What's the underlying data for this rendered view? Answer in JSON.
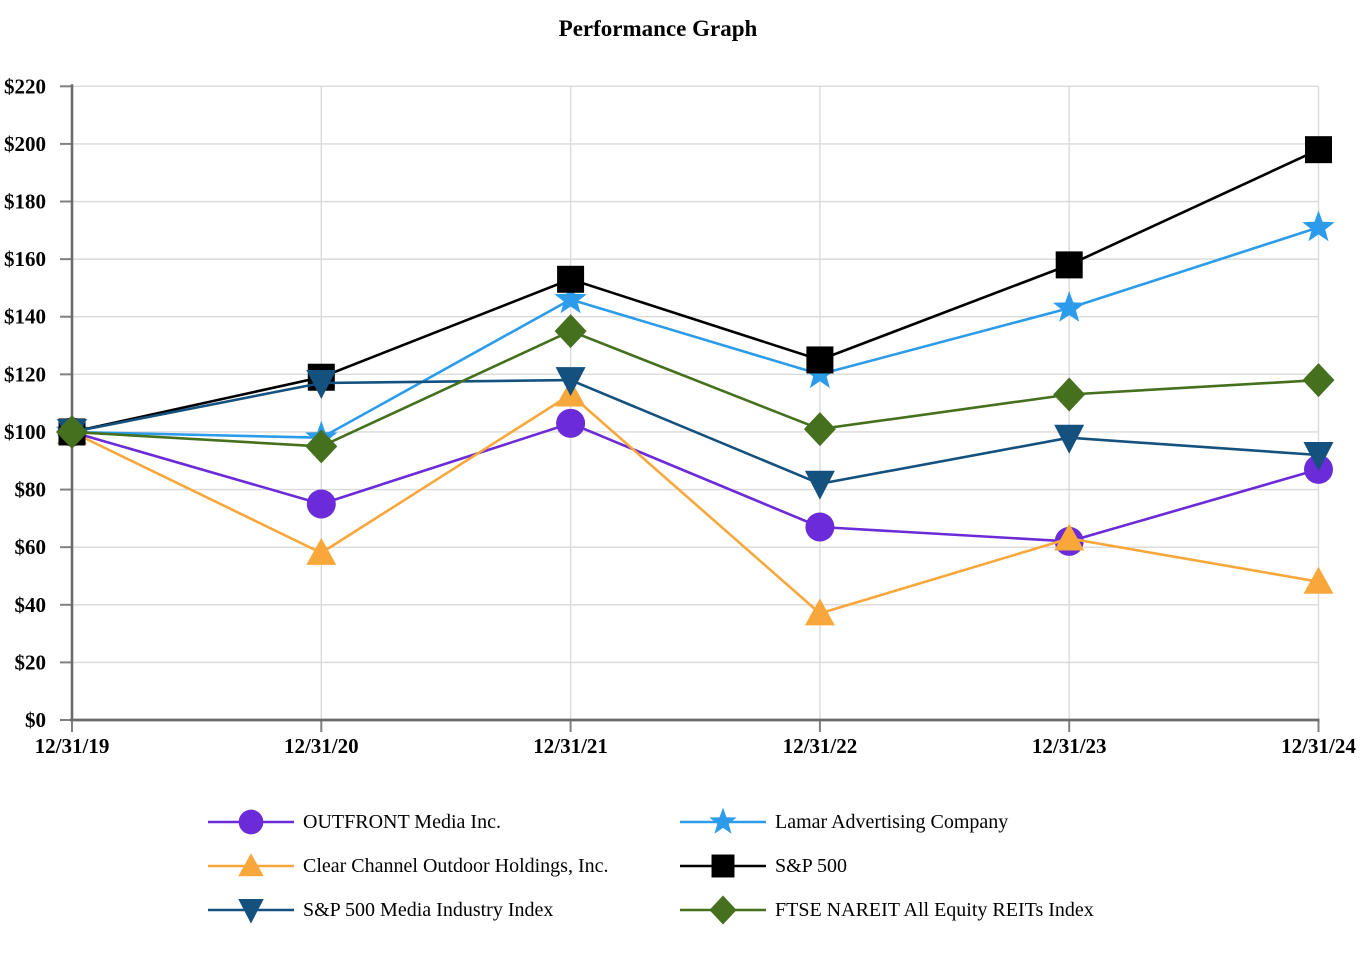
{
  "chart_data": {
    "type": "line",
    "title": "Performance Graph",
    "x_labels": [
      "12/31/19",
      "12/31/20",
      "12/31/21",
      "12/31/22",
      "12/31/23",
      "12/31/24"
    ],
    "y_tick_labels": [
      "$0",
      "$20",
      "$40",
      "$60",
      "$80",
      "$100",
      "$120",
      "$140",
      "$160",
      "$180",
      "$200",
      "$220"
    ],
    "ylim": [
      0,
      220
    ],
    "y_tick_step": 20,
    "grid": true,
    "legend_position": "bottom",
    "grid_color": "#DADADA",
    "axis_color": "#6B6B6B",
    "tick_color": "#808080",
    "series": [
      {
        "name": "OUTFRONT Media Inc.",
        "marker": "circle",
        "color": "#6B2BD8",
        "values": [
          100,
          75,
          103,
          67,
          62,
          87
        ]
      },
      {
        "name": "Lamar Advertising Company",
        "marker": "star",
        "color": "#2C9CEA",
        "values": [
          100,
          98,
          146,
          120,
          143,
          171
        ]
      },
      {
        "name": "Clear Channel Outdoor Holdings, Inc.",
        "marker": "triangle-up",
        "color": "#F8A73B",
        "values": [
          100,
          58,
          113,
          37,
          63,
          48
        ]
      },
      {
        "name": "S&P 500",
        "marker": "square",
        "color": "#000000",
        "values": [
          100,
          119,
          153,
          125,
          158,
          198
        ]
      },
      {
        "name": "S&P 500 Media Industry Index",
        "marker": "triangle-down",
        "color": "#15517E",
        "values": [
          100,
          117,
          118,
          82,
          98,
          92
        ]
      },
      {
        "name": "FTSE NAREIT All Equity REITs Index",
        "marker": "diamond",
        "color": "#45701D",
        "values": [
          100,
          95,
          135,
          101,
          113,
          118
        ]
      }
    ]
  },
  "legend": {
    "left_column": [
      0,
      2,
      4
    ],
    "right_column": [
      1,
      3,
      5
    ]
  }
}
